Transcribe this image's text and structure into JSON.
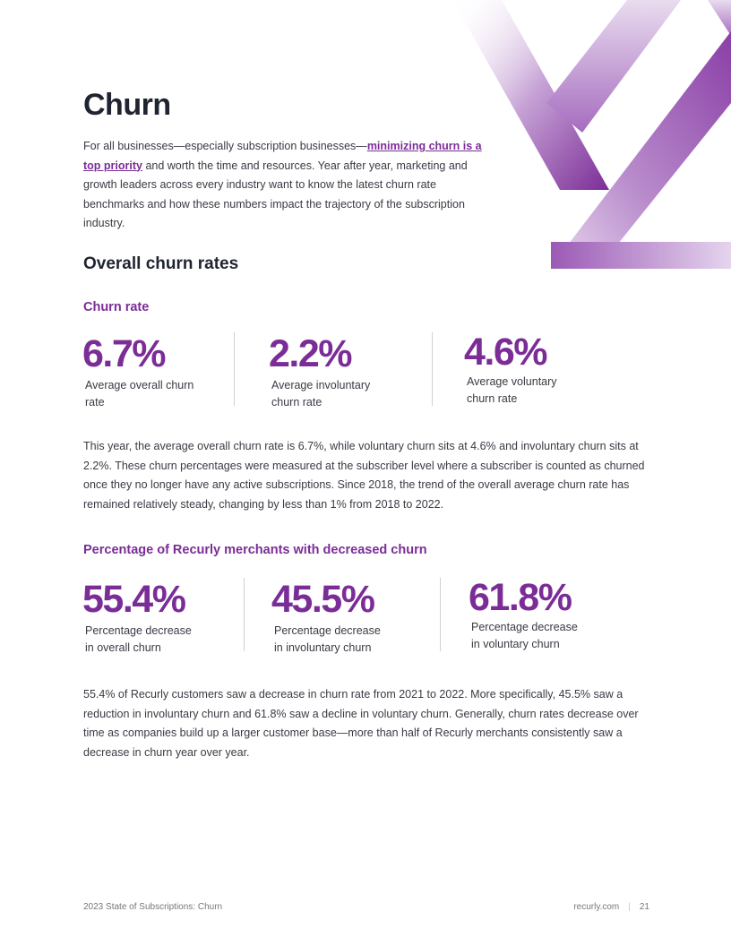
{
  "header": {
    "title": "Churn",
    "intro_before": "For all businesses—especially subscription businesses—",
    "intro_link": "minimizing churn is a top priority",
    "intro_after": " and worth the time and resources. Year after year, marketing and growth leaders across every industry want to know the latest churn rate benchmarks and how these numbers impact the trajectory of the subscription industry."
  },
  "overall": {
    "heading": "Overall churn rates",
    "subheading": "Churn rate",
    "stats": [
      {
        "value": "6.7%",
        "label": "Average overall churn rate"
      },
      {
        "value": "2.2%",
        "label": "Average involuntary churn rate"
      },
      {
        "value": "4.6%",
        "label": "Average voluntary churn rate"
      }
    ],
    "paragraph": "This year, the average overall churn rate is 6.7%, while voluntary churn sits at 4.6% and involuntary churn sits at 2.2%. These churn percentages were measured at the subscriber level where a subscriber is counted as churned once they no longer have any active subscriptions. Since 2018, the trend of the overall average churn rate has remained relatively steady, changing by less than 1% from 2018 to 2022."
  },
  "decreased": {
    "subheading": "Percentage of Recurly merchants with decreased churn",
    "stats": [
      {
        "value": "55.4%",
        "label": "Percentage decrease in overall churn"
      },
      {
        "value": "45.5%",
        "label": "Percentage decrease in involuntary churn"
      },
      {
        "value": "61.8%",
        "label": "Percentage decrease in voluntary churn"
      }
    ],
    "paragraph": "55.4% of Recurly customers saw a decrease in churn rate from 2021 to 2022. More specifically, 45.5% saw a reduction in involuntary churn and 61.8% saw a decline in voluntary churn. Generally, churn rates decrease over time as companies build up a larger customer base—more than half of Recurly merchants consistently saw a decrease in churn year over year."
  },
  "footer": {
    "report": "2023 State of Subscriptions: Churn",
    "site": "recurly.com",
    "separator": "|",
    "page": "21"
  },
  "colors": {
    "accent": "#7b2d97",
    "heading": "#1f2430",
    "text": "#3a3a44"
  }
}
